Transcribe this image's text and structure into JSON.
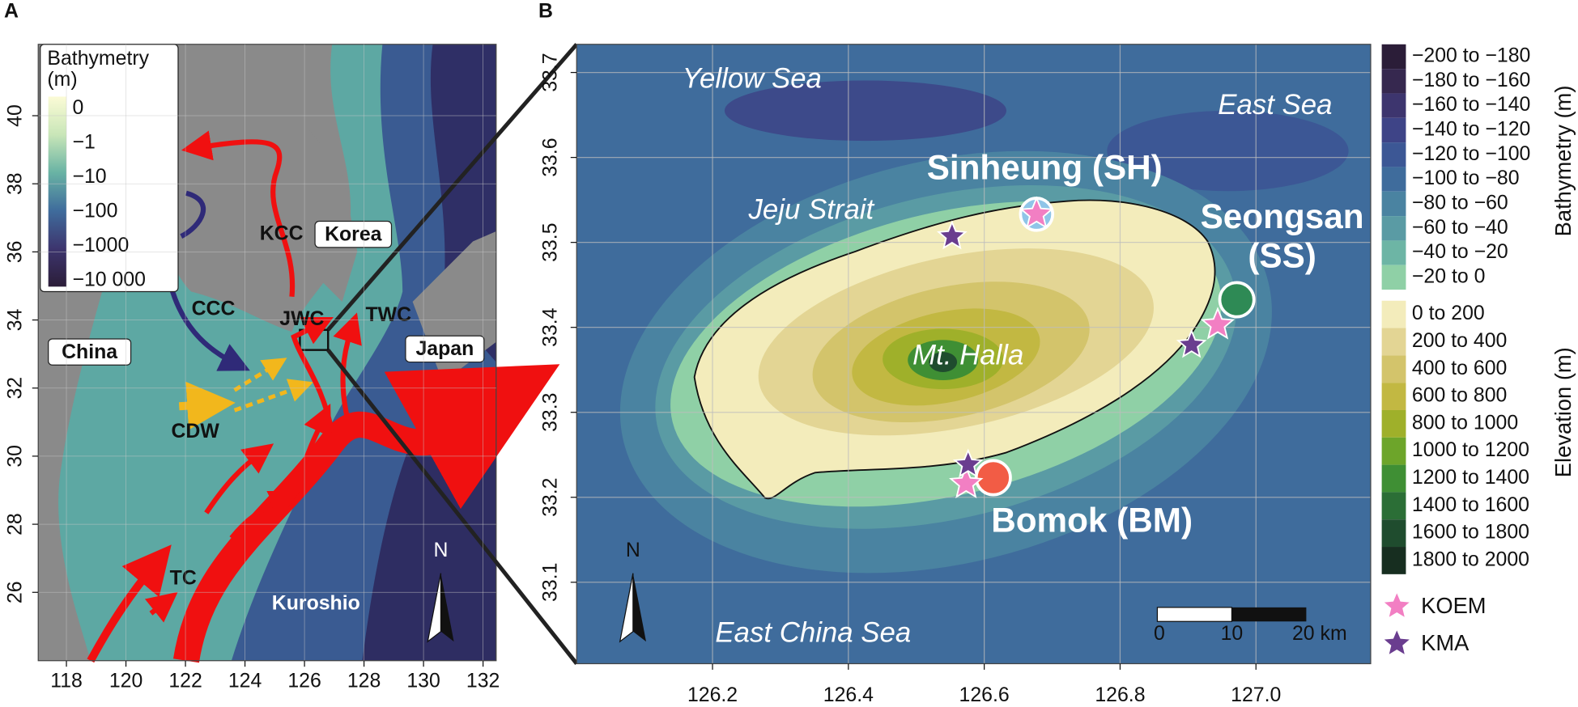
{
  "panel_a": {
    "label": "A",
    "legend": {
      "title_lines": [
        "Bathymetry",
        "(m)"
      ],
      "labels": [
        "0",
        "−1",
        "−10",
        "−100",
        "−1000",
        "−10 000"
      ]
    },
    "labels": {
      "kcc": "KCC",
      "korea": "Korea",
      "ccc": "CCC",
      "jwc": "JWC",
      "twc": "TWC",
      "china": "China",
      "japan": "Japan",
      "cdw": "CDW",
      "tc": "TC",
      "kuroshio": "Kuroshio"
    },
    "north": "N",
    "xticks": [
      118,
      120,
      122,
      124,
      126,
      128,
      130,
      132
    ],
    "yticks": [
      26,
      28,
      30,
      32,
      34,
      36,
      38,
      40
    ]
  },
  "panel_b": {
    "label": "B",
    "labels": {
      "yellow_sea": "Yellow Sea",
      "east_sea": "East Sea",
      "jeju_strait": "Jeju Strait",
      "mt_halla": "Mt. Halla",
      "east_china_sea": "East China Sea"
    },
    "sites": {
      "sinheung": "Sinheung (SH)",
      "seongsan_lines": [
        "Seongsan",
        "(SS)"
      ],
      "bomok": "Bomok (BM)"
    },
    "north": "N",
    "scale_labels": [
      "0",
      "10",
      "20 km"
    ],
    "xticks": [
      126.2,
      126.4,
      126.6,
      126.8,
      {
        "value": 127,
        "label": "127.0"
      }
    ],
    "yticks": [
      33.1,
      33.2,
      33.3,
      33.4,
      33.5,
      33.6,
      33.7
    ],
    "bathymetry_legend": {
      "title": "Bathymetry (m)",
      "items": [
        {
          "label": "−200 to −180",
          "color": "#2b1d38"
        },
        {
          "label": "−180 to −160",
          "color": "#36284f"
        },
        {
          "label": "−160 to −140",
          "color": "#3d356e"
        },
        {
          "label": "−140 to −120",
          "color": "#3e4487"
        },
        {
          "label": "−120 to −100",
          "color": "#3c5795"
        },
        {
          "label": "−100 to −80",
          "color": "#3f6c9c"
        },
        {
          "label": "−80 to −60",
          "color": "#4a83a1"
        },
        {
          "label": "−60 to −40",
          "color": "#5a9ba4"
        },
        {
          "label": "−40 to −20",
          "color": "#6db5a5"
        },
        {
          "label": "−20 to 0",
          "color": "#8fd0a6"
        }
      ]
    },
    "elevation_legend": {
      "title": "Elevation (m)",
      "items": [
        {
          "label": "0 to 200",
          "color": "#f3ecbb"
        },
        {
          "label": "200 to 400",
          "color": "#e3d594"
        },
        {
          "label": "400 to 600",
          "color": "#d3c46b"
        },
        {
          "label": "600 to 800",
          "color": "#c2b842"
        },
        {
          "label": "800 to 1000",
          "color": "#9fb02a"
        },
        {
          "label": "1000 to 1200",
          "color": "#6da52a"
        },
        {
          "label": "1200 to 1400",
          "color": "#3f8f34"
        },
        {
          "label": "1400 to 1600",
          "color": "#2b6e36"
        },
        {
          "label": "1600 to 1800",
          "color": "#1f4c2e"
        },
        {
          "label": "1800 to 2000",
          "color": "#172e20"
        }
      ]
    },
    "marker_legend": [
      {
        "label": "KOEM",
        "color": "#f27fc3"
      },
      {
        "label": "KMA",
        "color": "#6a3d8f"
      }
    ]
  }
}
